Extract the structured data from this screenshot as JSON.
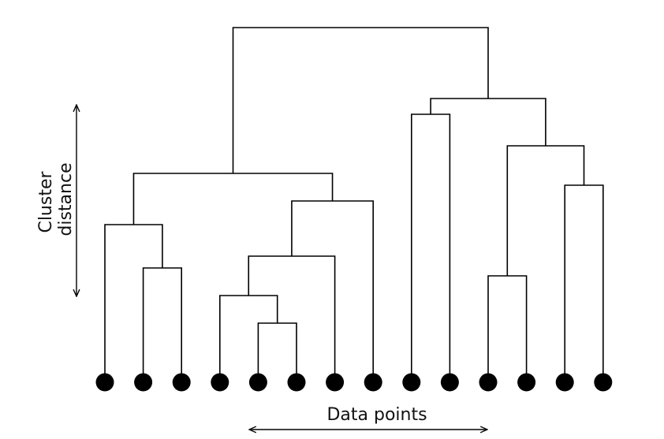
{
  "y_axis": {
    "label_lines": [
      "Cluster",
      "distance"
    ]
  },
  "x_axis": {
    "label": "Data points"
  },
  "colors": {
    "ink": "#000000",
    "background": "#ffffff"
  },
  "leaves": [
    {
      "id": "p1"
    },
    {
      "id": "p2"
    },
    {
      "id": "p3"
    },
    {
      "id": "p4"
    },
    {
      "id": "p5"
    },
    {
      "id": "p6"
    },
    {
      "id": "p7"
    },
    {
      "id": "p8"
    },
    {
      "id": "p9"
    },
    {
      "id": "p10"
    },
    {
      "id": "p11"
    },
    {
      "id": "p12"
    },
    {
      "id": "p13"
    },
    {
      "id": "p14"
    }
  ],
  "merges": [
    {
      "id": "A",
      "left": "p2",
      "right": "p3",
      "height": 2.9
    },
    {
      "id": "B",
      "left": "p1",
      "right": "A",
      "height": 4.0
    },
    {
      "id": "C",
      "left": "p5",
      "right": "p6",
      "height": 1.5
    },
    {
      "id": "D",
      "left": "p4",
      "right": "C",
      "height": 2.2
    },
    {
      "id": "E",
      "left": "D",
      "right": "p7",
      "height": 3.2
    },
    {
      "id": "F",
      "left": "E",
      "right": "p8",
      "height": 4.6
    },
    {
      "id": "G",
      "left": "B",
      "right": "F",
      "height": 5.3
    },
    {
      "id": "H",
      "left": "p9",
      "right": "p10",
      "height": 6.8
    },
    {
      "id": "I",
      "left": "p11",
      "right": "p12",
      "height": 2.7
    },
    {
      "id": "J",
      "left": "p13",
      "right": "p14",
      "height": 5.0
    },
    {
      "id": "K",
      "left": "I",
      "right": "J",
      "height": 6.0
    },
    {
      "id": "L",
      "left": "H",
      "right": "K",
      "height": 7.2
    },
    {
      "id": "M",
      "left": "G",
      "right": "L",
      "height": 9.0
    }
  ]
}
